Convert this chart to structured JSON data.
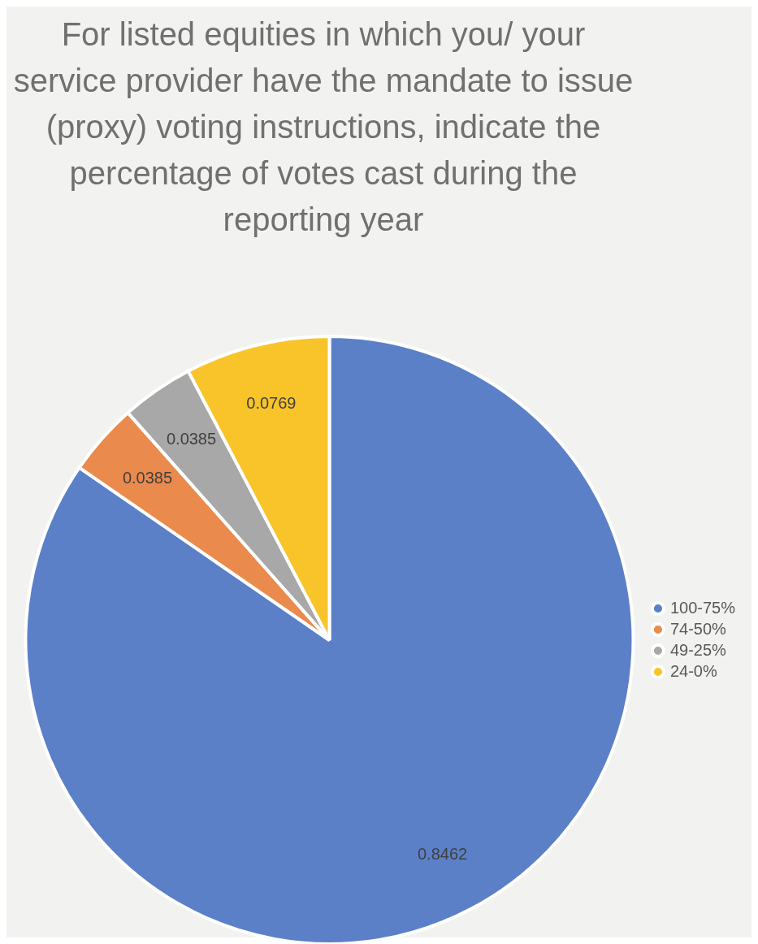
{
  "chart_data": {
    "type": "pie",
    "title": "For listed equities in which you/ your service provider have the mandate to issue (proxy) voting instructions, indicate the percentage of votes cast during the reporting year",
    "categories": [
      "100-75%",
      "74-50%",
      "49-25%",
      "24-0%"
    ],
    "values": [
      0.8462,
      0.0385,
      0.0385,
      0.0769
    ],
    "colors": [
      "#5b80c8",
      "#ea8a4c",
      "#a8a8a8",
      "#f8c42a"
    ],
    "data_labels": true,
    "legend": "right"
  }
}
